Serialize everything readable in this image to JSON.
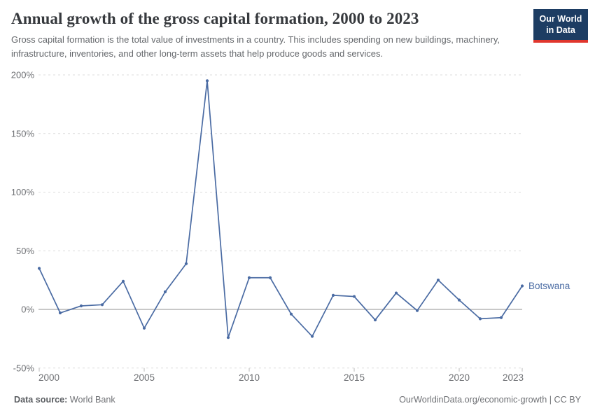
{
  "header": {
    "title": "Annual growth of the gross capital formation, 2000 to 2023",
    "subtitle": "Gross capital formation is the total value of investments in a country. This includes spending on new buildings, machinery, infrastructure, inventories, and other long-term assets that help produce goods and services.",
    "logo": {
      "line1": "Our World",
      "line2": "in Data",
      "bg_color": "#1d3d63",
      "accent_color": "#e0362d"
    }
  },
  "chart_data": {
    "type": "line",
    "title": "Annual growth of the gross capital formation, 2000 to 2023",
    "x": [
      2000,
      2001,
      2002,
      2003,
      2004,
      2005,
      2006,
      2007,
      2008,
      2009,
      2010,
      2011,
      2012,
      2013,
      2014,
      2015,
      2016,
      2017,
      2018,
      2019,
      2020,
      2021,
      2022,
      2023
    ],
    "series": [
      {
        "name": "Botswana",
        "color": "#4a6ba3",
        "values": [
          35,
          -3,
          3,
          4,
          24,
          -16,
          15,
          39,
          195,
          -24,
          27,
          27,
          -4,
          -23,
          12,
          11,
          -9,
          14,
          -1,
          25,
          8,
          -8,
          -7,
          20
        ]
      }
    ],
    "ylim": [
      -50,
      200
    ],
    "yticks": [
      {
        "value": 200,
        "label": "200%"
      },
      {
        "value": 150,
        "label": "150%"
      },
      {
        "value": 100,
        "label": "100%"
      },
      {
        "value": 50,
        "label": "50%"
      },
      {
        "value": 0,
        "label": "0%"
      },
      {
        "value": -50,
        "label": "-50%"
      }
    ],
    "xticks": [
      {
        "value": 2000,
        "label": "2000"
      },
      {
        "value": 2005,
        "label": "2005"
      },
      {
        "value": 2010,
        "label": "2010"
      },
      {
        "value": 2015,
        "label": "2015"
      },
      {
        "value": 2020,
        "label": "2020"
      },
      {
        "value": 2023,
        "label": "2023"
      }
    ],
    "grid": "horizontal-dashed",
    "legend": "inline-end-label",
    "axis_color": "#6e7074",
    "gridline_color": "#dcdcdc",
    "zero_line_color": "#a8a8a8",
    "tick_color": "#b8b8b8"
  },
  "footer": {
    "source_label": "Data source:",
    "source_value": "World Bank",
    "attribution": "OurWorldinData.org/economic-growth | CC BY"
  }
}
